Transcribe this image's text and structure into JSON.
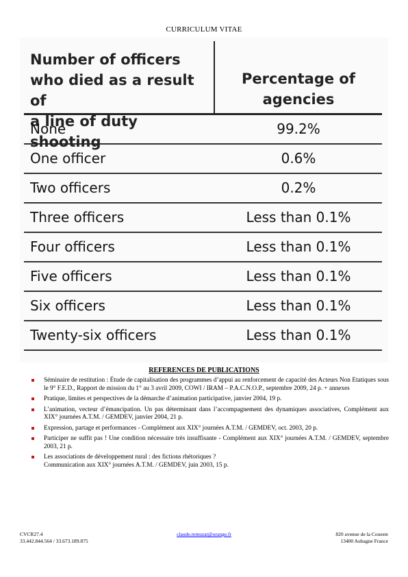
{
  "header": {
    "title": "CURRICULUM VITAE"
  },
  "table": {
    "col1_header": [
      "Number of officers",
      "who died as a result of",
      "a line of duty shooting"
    ],
    "col2_header": [
      "Percentage of",
      "agencies"
    ],
    "rows": [
      {
        "label": "None",
        "value": "99.2%"
      },
      {
        "label": "One officer",
        "value": "0.6%"
      },
      {
        "label": "Two officers",
        "value": "0.2%"
      },
      {
        "label": "Three officers",
        "value": "Less than 0.1%"
      },
      {
        "label": "Four officers",
        "value": "Less than 0.1%"
      },
      {
        "label": "Five officers",
        "value": "Less than 0.1%"
      },
      {
        "label": "Six officers",
        "value": "Less than 0.1%"
      },
      {
        "label": "Twenty-six officers",
        "value": "Less than 0.1%"
      }
    ]
  },
  "references": {
    "title": "REFERENCES DE PUBLICATIONS",
    "bullet_color": "#c0191c",
    "items": [
      {
        "text": "Séminaire de restitution : Étude de capitalisation des programmes d’appui au renforcement de capacité des Acteurs Non Etatiques sous le 9° F.E.D., Rapport de mission du 1° au 3 avril 2009, COWI / IRAM – P.A.C.N.O.P., septembre 2009, 24 p. + annexes",
        "text2": ""
      },
      {
        "text": "Pratique, limites et perspectives de la démarche d’animation participative, janvier 2004, 19 p.",
        "text2": ""
      },
      {
        "text": "L’animation, vecteur d’émancipation. Un pas déterminant dans l’accompagnement des dynamiques associatives, Complément aux XIX° journées A.T.M. / GEMDEV, janvier 2004, 21 p.",
        "text2": ""
      },
      {
        "text": "Expression, partage et performances - Complément aux XIX° journées A.T.M. / GEMDEV, oct. 2003, 20 p.",
        "text2": ""
      },
      {
        "text": "Participer ne suffit pas ! Une condition nécessaire très insuffisante - Complément aux XIX° journées A.T.M. / GEMDEV, septembre 2003, 21 p.",
        "text2": ""
      },
      {
        "text": "Les associations de développement rural : des fictions rhétoriques ?",
        "text2": "Communication aux XIX° journées A.T.M. / GEMDEV, juin 2003, 15 p."
      }
    ]
  },
  "footer": {
    "ref": "CVCR27.4",
    "phones": "33.442.844.564 / 33.673.189.875",
    "email": "claude.remuzat@orange.fr",
    "address_line1": "820 avenue de la Coueste",
    "address_line2": "13400 Aubagne France"
  }
}
